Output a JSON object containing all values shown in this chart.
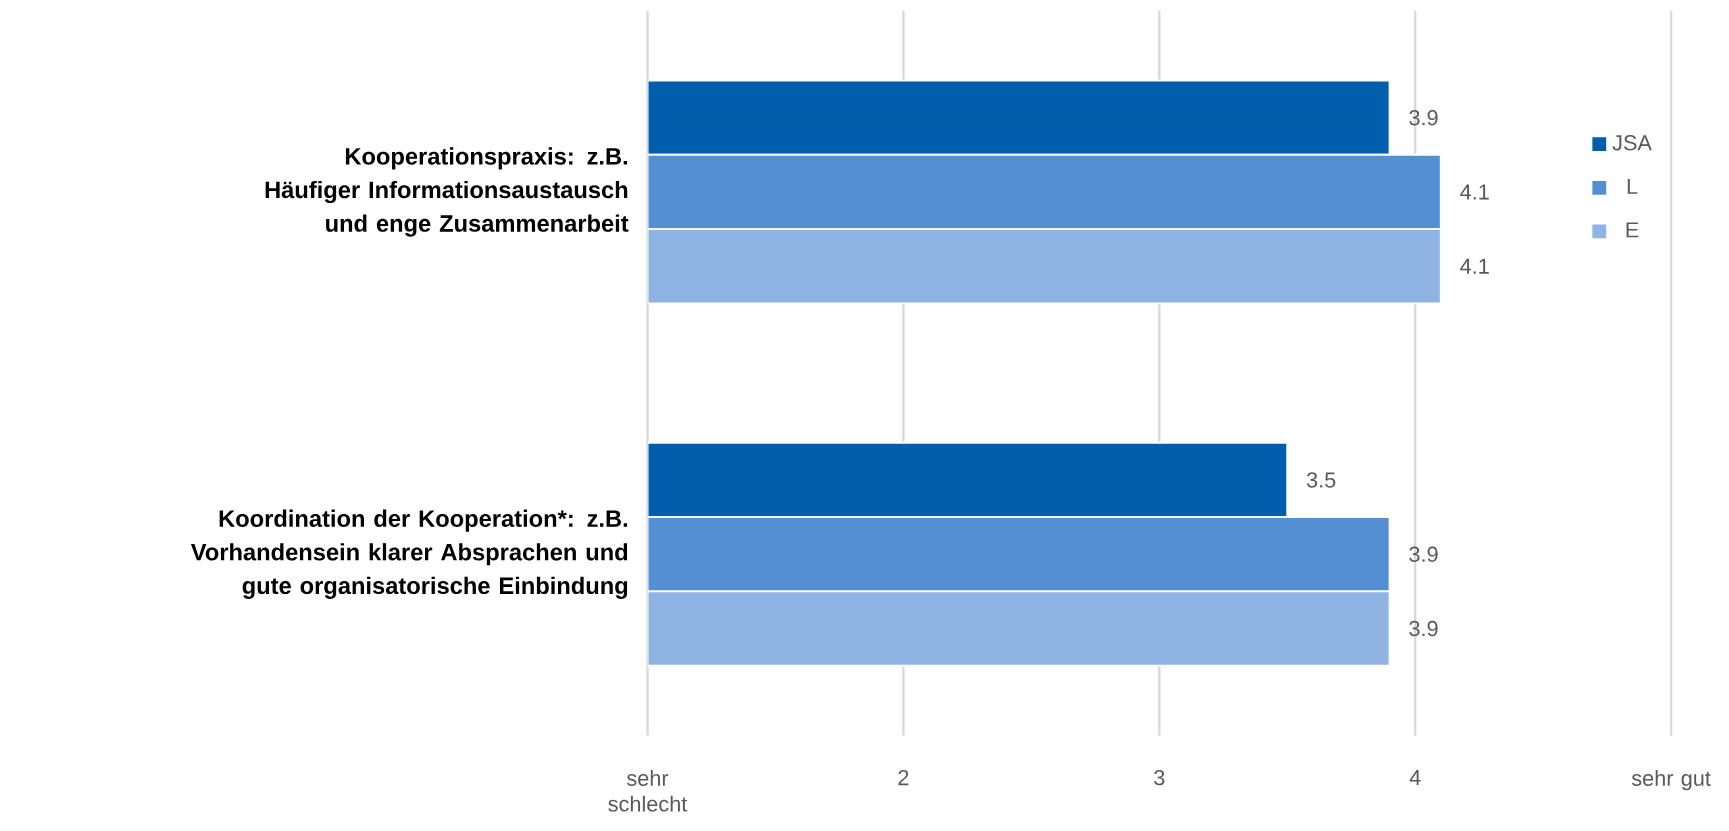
{
  "chart_data": {
    "type": "bar",
    "orientation": "horizontal",
    "categories": [
      "Kooperationspraxis: z.B. Häufiger Informationsaustausch und enge Zusammenarbeit",
      "Koordination der Kooperation*: z.B. Vorhandensein klarer Absprachen und gute organisatorische Einbindung"
    ],
    "series": [
      {
        "name": "JSA",
        "color": "#005eac",
        "values": [
          3.9,
          3.5
        ]
      },
      {
        "name": "L",
        "color": "#548fd4",
        "values": [
          4.1,
          3.9
        ]
      },
      {
        "name": "E",
        "color": "#8fb4e3",
        "values": [
          4.1,
          3.9
        ]
      }
    ],
    "xlim": [
      1,
      5
    ],
    "xticks": [
      {
        "value": 1,
        "label": "sehr schlecht"
      },
      2,
      3,
      4,
      {
        "value": 5,
        "label": "sehr gut"
      }
    ],
    "grid": "x",
    "legend": "top right",
    "data_labels": true
  }
}
